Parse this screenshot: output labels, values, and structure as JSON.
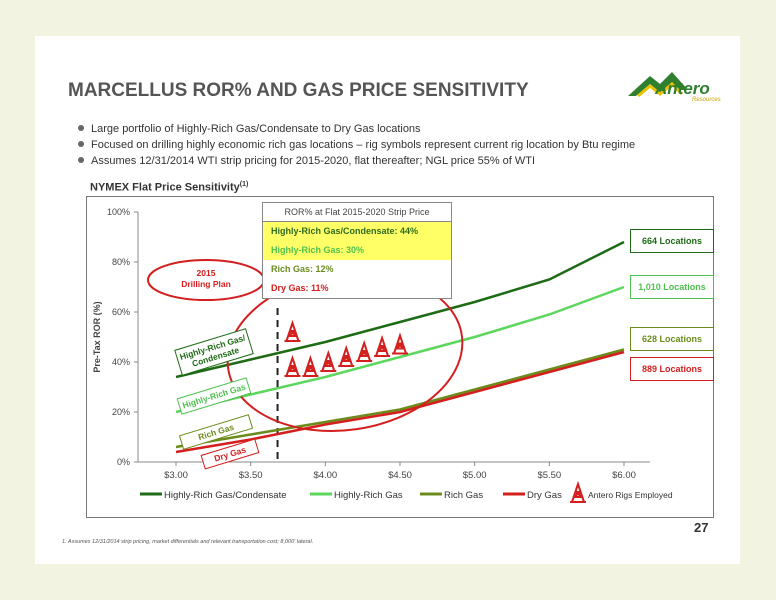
{
  "title": "MARCELLUS ROR% AND GAS PRICE SENSITIVITY",
  "logo": {
    "name": "Antero",
    "sub": "Resources"
  },
  "bullets": [
    "Large portfolio of Highly-Rich Gas/Condensate to Dry Gas locations",
    "Focused on drilling highly economic rich gas locations – rig symbols represent current rig location by Btu regime",
    "Assumes 12/31/2014 WTI strip pricing for 2015-2020, flat thereafter; NGL price 55% of WTI"
  ],
  "chart_title": "NYMEX Flat Price Sensitivity",
  "chart_title_sup": "(1)",
  "table": {
    "header": "ROR% at Flat 2015-2020 Strip Price",
    "rows": [
      {
        "label": "Highly-Rich Gas/Condensate: 44%",
        "color": "#2e6b1f",
        "bg": "#ffff66"
      },
      {
        "label": "Highly-Rich Gas: 30%",
        "color": "#4fc14f",
        "bg": "#ffff66"
      },
      {
        "label": "Rich Gas: 12%",
        "color": "#6a8c1f",
        "bg": "#ffffff"
      },
      {
        "label": "Dry Gas: 11%",
        "color": "#d3201f",
        "bg": "#ffffff"
      }
    ]
  },
  "drilling_plan": "2015\nDrilling Plan",
  "locations": [
    {
      "label": "664 Locations",
      "color": "#1e6b16"
    },
    {
      "label": "1,010 Locations",
      "color": "#4fc14f"
    },
    {
      "label": "628 Locations",
      "color": "#6b8c1c"
    },
    {
      "label": "889 Locations",
      "color": "#d3201f"
    }
  ],
  "line_labels": [
    "Highly-Rich Gas/\nCondensate",
    "Highly-Rich Gas",
    "Rich Gas",
    "Dry Gas"
  ],
  "legend_rigs": "Antero Rigs Employed",
  "footnote": "1.  Assumes 12/31/2014 strip pricing, market differentials and relevant transportation cost; 8,000' lateral.",
  "page_number": "27",
  "chart_data": {
    "type": "line",
    "ylabel": "Pre-Tax ROR (%)",
    "xlabel": "",
    "x": [
      3.0,
      3.5,
      4.0,
      4.5,
      5.0,
      5.5,
      6.0
    ],
    "x_tick_labels": [
      "$3.00",
      "$3.50",
      "$4.00",
      "$4.50",
      "$5.00",
      "$5.50",
      "$6.00"
    ],
    "y_tick_labels": [
      "0%",
      "20%",
      "40%",
      "60%",
      "80%",
      "100%"
    ],
    "ylim": [
      0,
      100
    ],
    "xlim": [
      3.0,
      6.0
    ],
    "strip_price_x": 3.68,
    "series": [
      {
        "name": "Highly-Rich Gas/Condensate",
        "color": "#1e6b16",
        "values": [
          34,
          41,
          48,
          56,
          64,
          73,
          88
        ]
      },
      {
        "name": "Highly-Rich Gas",
        "color": "#5cd65c",
        "values": [
          20,
          27,
          34,
          42,
          50,
          59,
          70
        ]
      },
      {
        "name": "Rich Gas",
        "color": "#6b8c1c",
        "values": [
          6,
          11,
          16,
          21,
          29,
          37,
          45
        ]
      },
      {
        "name": "Dry Gas",
        "color": "#d3201f",
        "values": [
          4,
          9,
          15,
          20,
          28,
          36,
          44
        ]
      }
    ],
    "rigs": [
      {
        "x": 3.78,
        "y": 52
      },
      {
        "x": 3.78,
        "y": 38
      },
      {
        "x": 3.9,
        "y": 38
      },
      {
        "x": 4.02,
        "y": 40
      },
      {
        "x": 4.14,
        "y": 42
      },
      {
        "x": 4.26,
        "y": 44
      },
      {
        "x": 4.38,
        "y": 46
      },
      {
        "x": 4.5,
        "y": 47
      }
    ]
  }
}
